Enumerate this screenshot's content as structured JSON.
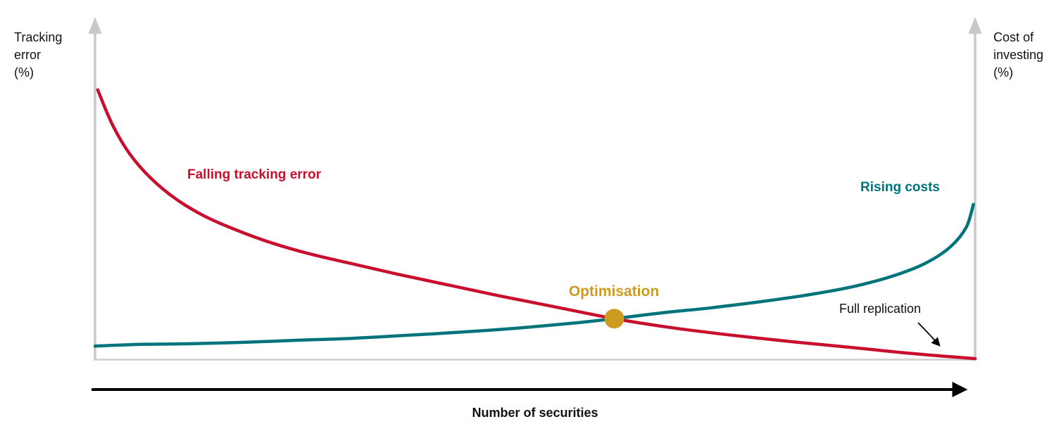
{
  "axes": {
    "left_label": "Tracking\nerror\n(%)",
    "right_label": "Cost of\ninvesting\n(%)",
    "x_label": "Number of securities",
    "axis_color": "#c8c8c8",
    "baseline_color": "#d4d4d4",
    "x_arrow_color": "#000000"
  },
  "annotations": {
    "falling": {
      "label": "Falling tracking error",
      "color": "#C8102E"
    },
    "rising": {
      "label": "Rising costs",
      "color": "#00747A"
    },
    "optimisation": {
      "label": "Optimisation",
      "color": "#CC9B1F"
    },
    "full_replication": {
      "label": "Full replication",
      "color": "#111111"
    }
  },
  "chart_data": {
    "type": "line",
    "title": "",
    "xlabel": "Number of securities",
    "ylabel_left": "Tracking error (%)",
    "ylabel_right": "Cost of investing (%)",
    "axis_ranges": "qualitative - no numeric ticks or gridlines; arrows on axes indicate increasing direction",
    "legend_position": "inline curve labels",
    "grid": false,
    "series": [
      {
        "name": "Falling tracking error",
        "color": "#C8102E",
        "shape": "convex decreasing decay from high tracking error at few securities to near zero at full replication",
        "points_norm": [
          [
            0.3,
            79.7
          ],
          [
            2.0,
            69.3
          ],
          [
            4.0,
            60.6
          ],
          [
            6.4,
            53.5
          ],
          [
            9.2,
            47.5
          ],
          [
            12.4,
            42.5
          ],
          [
            16.0,
            38.4
          ],
          [
            20.0,
            34.6
          ],
          [
            24.4,
            31.3
          ],
          [
            29.2,
            28.4
          ],
          [
            34.4,
            25.3
          ],
          [
            40.0,
            22.2
          ],
          [
            46.0,
            18.9
          ],
          [
            52.4,
            15.6
          ],
          [
            59.0,
            12.2
          ],
          [
            65.6,
            9.5
          ],
          [
            72.4,
            7.3
          ],
          [
            79.2,
            5.4
          ],
          [
            86.0,
            3.7
          ],
          [
            92.8,
            1.9
          ],
          [
            100.0,
            0.4
          ]
        ]
      },
      {
        "name": "Rising costs",
        "color": "#00747A",
        "shape": "convex increasing curve from low cost at few securities, rising steeply near full replication",
        "points_norm": [
          [
            0.0,
            4.1
          ],
          [
            5.2,
            4.6
          ],
          [
            10.8,
            4.8
          ],
          [
            16.8,
            5.2
          ],
          [
            22.8,
            5.8
          ],
          [
            29.2,
            6.4
          ],
          [
            35.6,
            7.3
          ],
          [
            42.0,
            8.3
          ],
          [
            48.4,
            9.5
          ],
          [
            54.8,
            11.0
          ],
          [
            59.0,
            12.2
          ],
          [
            64.4,
            13.9
          ],
          [
            70.0,
            15.4
          ],
          [
            75.6,
            17.2
          ],
          [
            81.2,
            19.3
          ],
          [
            86.4,
            21.8
          ],
          [
            90.8,
            24.9
          ],
          [
            94.4,
            28.6
          ],
          [
            97.2,
            33.4
          ],
          [
            99.0,
            39.2
          ],
          [
            99.8,
            45.9
          ]
        ]
      }
    ],
    "markers": [
      {
        "name": "Optimisation",
        "x": 59.0,
        "y": 12.2,
        "radius": 14,
        "color": "#CC9B1F"
      }
    ],
    "note": "points_norm use x 0-100 (left axis to right axis) and y 0-100 (baseline to top); curves cross at the Optimisation point; Full replication annotation arrow points to the right-hand end of the falling tracking error curve"
  }
}
